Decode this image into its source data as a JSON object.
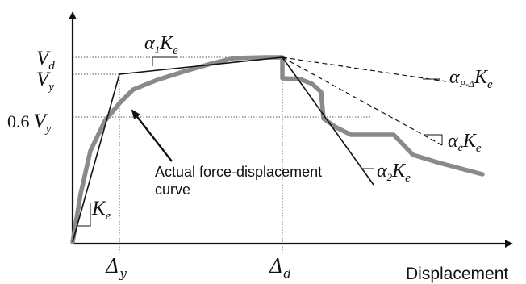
{
  "diagram": {
    "x_axis_label": "Displacement",
    "labels": {
      "vd": {
        "main": "V",
        "sub": "d"
      },
      "vy": {
        "main": "V",
        "sub": "y"
      },
      "vy06": {
        "coef": "0.6",
        "main": "V",
        "sub": "y"
      },
      "delta_y": {
        "main": "Δ",
        "sub": "y"
      },
      "delta_d": {
        "main": "Δ",
        "sub": "d"
      },
      "ke": {
        "main": "K",
        "sub": "e"
      },
      "alpha1_ke": {
        "alpha": "α",
        "alpha_sub": "1",
        "main": "K",
        "sub": "e"
      },
      "alpha2_ke": {
        "alpha": "α",
        "alpha_sub": "2",
        "main": "K",
        "sub": "e"
      },
      "alphae_ke": {
        "alpha": "α",
        "alpha_sub": "e",
        "main": "K",
        "sub": "e"
      },
      "alphapd_ke": {
        "alpha": "α",
        "alpha_sub": "P-Δ",
        "main": "K",
        "sub": "e"
      }
    },
    "annotation": {
      "line1": "Actual force-displacement",
      "line2": "curve"
    },
    "colors": {
      "axis": "#111111",
      "backbone": "#111111",
      "actual_curve": "#8a8a8a",
      "guides": "#555555"
    }
  }
}
